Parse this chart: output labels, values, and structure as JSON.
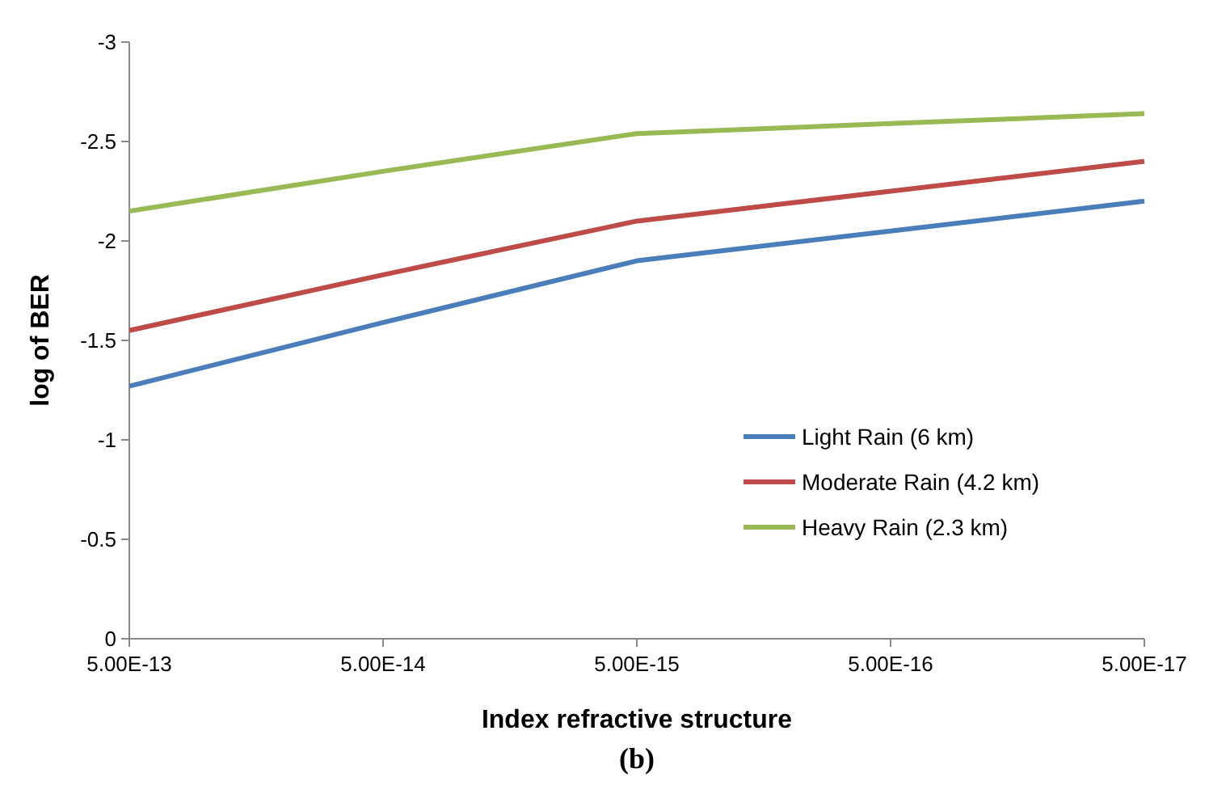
{
  "chart_data": {
    "type": "line",
    "xlabel": "Index refractive structure",
    "ylabel": "log of BER",
    "categories": [
      "5.00E-13",
      "5.00E-14",
      "5.00E-15",
      "5.00E-16",
      "5.00E-17"
    ],
    "series": [
      {
        "name": "Light Rain (6 km)",
        "color": "#4a7ebb",
        "values": [
          -1.27,
          -1.59,
          -1.9,
          -2.05,
          -2.2
        ]
      },
      {
        "name": "Moderate Rain (4.2 km)",
        "color": "#be4b48",
        "values": [
          -1.55,
          -1.83,
          -2.1,
          -2.25,
          -2.4
        ]
      },
      {
        "name": "Heavy Rain (2.3 km)",
        "color": "#98b954",
        "values": [
          -2.15,
          -2.35,
          -2.54,
          -2.59,
          -2.64
        ]
      }
    ],
    "ylim": [
      0,
      -3
    ],
    "yticks": [
      {
        "value": 0,
        "label": "0"
      },
      {
        "value": -0.5,
        "label": "-0.5"
      },
      {
        "value": -1,
        "label": "-1"
      },
      {
        "value": -1.5,
        "label": "-1.5"
      },
      {
        "value": -2,
        "label": "-2"
      },
      {
        "value": -2.5,
        "label": "-2.5"
      },
      {
        "value": -3,
        "label": "-3"
      }
    ],
    "grid": false,
    "legend": "right",
    "marker": "none",
    "line_style": "solid",
    "annotations": [
      "(b)"
    ]
  }
}
